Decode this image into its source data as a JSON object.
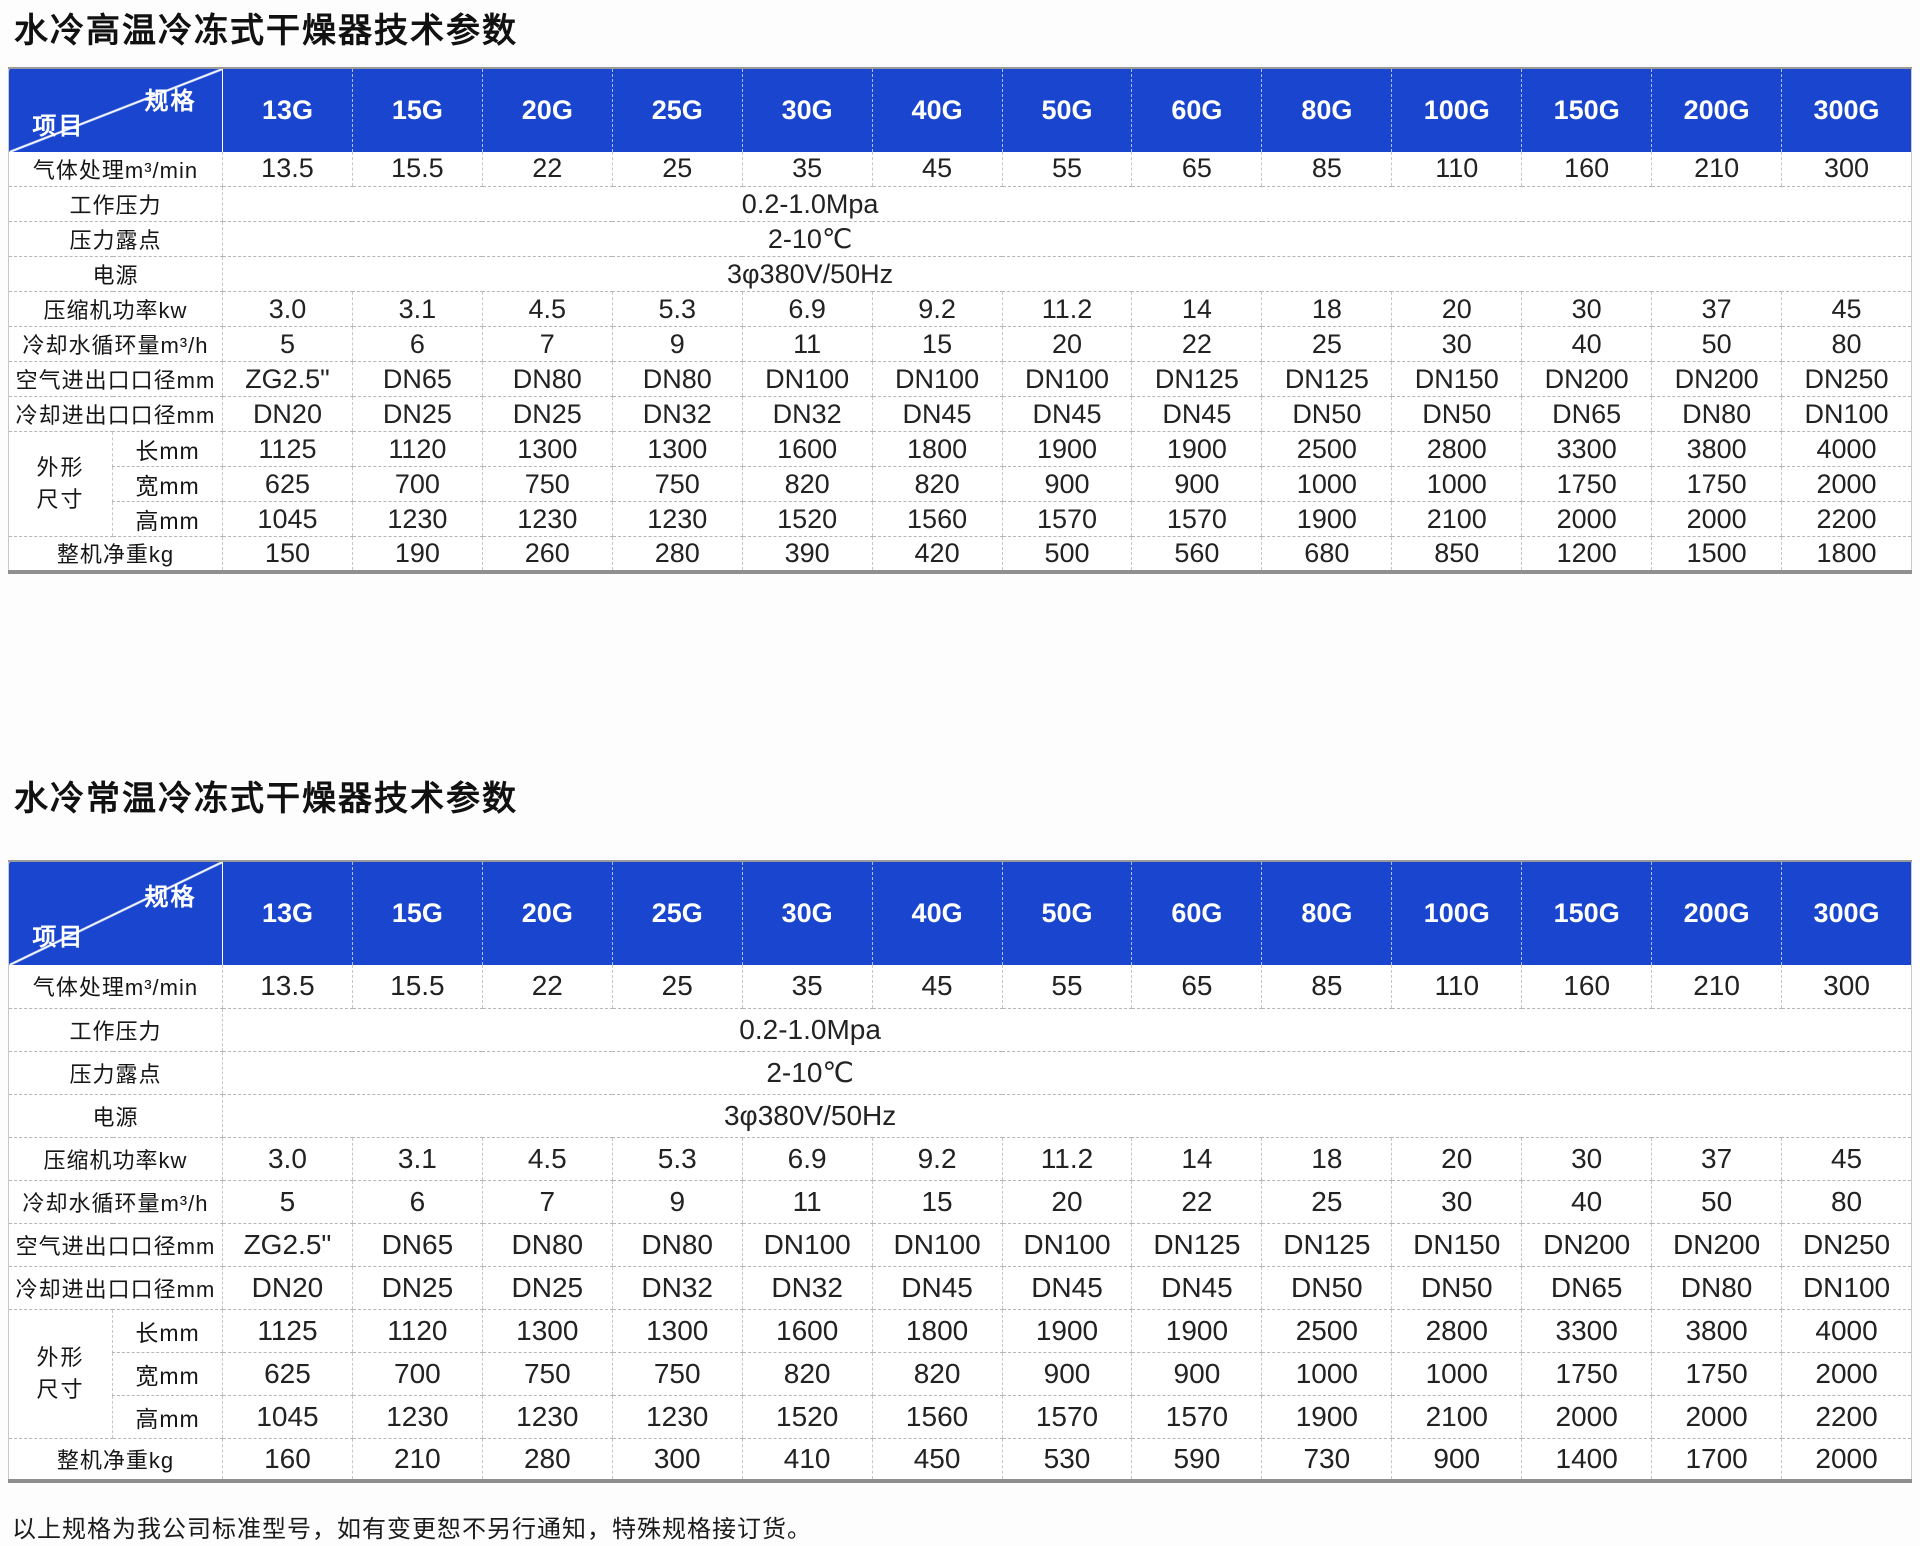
{
  "colors": {
    "header_blue": "#1a46cf"
  },
  "footer": {
    "note": "以上规格为我公司标准型号，如有变更恕不另行通知，特殊规格接订货。"
  },
  "tables": [
    {
      "title": "水冷高温冷冻式干燥器技术参数",
      "corner": {
        "spec": "规格",
        "item": "项目"
      },
      "models": [
        "13G",
        "15G",
        "20G",
        "25G",
        "30G",
        "40G",
        "50G",
        "60G",
        "80G",
        "100G",
        "150G",
        "200G",
        "300G"
      ],
      "dim_group": [
        "外形",
        "尺寸"
      ],
      "rows": [
        {
          "label": "气体处理m³/min",
          "values": [
            "13.5",
            "15.5",
            "22",
            "25",
            "35",
            "45",
            "55",
            "65",
            "85",
            "110",
            "160",
            "210",
            "300"
          ]
        },
        {
          "label": "工作压力",
          "merged": "0.2-1.0Mpa"
        },
        {
          "label": "压力露点",
          "merged": "2-10℃"
        },
        {
          "label": "电源",
          "merged": "3φ380V/50Hz"
        },
        {
          "label": "压缩机功率kw",
          "values": [
            "3.0",
            "3.1",
            "4.5",
            "5.3",
            "6.9",
            "9.2",
            "11.2",
            "14",
            "18",
            "20",
            "30",
            "37",
            "45"
          ]
        },
        {
          "label": "冷却水循环量m³/h",
          "values": [
            "5",
            "6",
            "7",
            "9",
            "11",
            "15",
            "20",
            "22",
            "25",
            "30",
            "40",
            "50",
            "80"
          ]
        },
        {
          "label": "空气进出口口径mm",
          "values": [
            "ZG2.5\"",
            "DN65",
            "DN80",
            "DN80",
            "DN100",
            "DN100",
            "DN100",
            "DN125",
            "DN125",
            "DN150",
            "DN200",
            "DN200",
            "DN250"
          ]
        },
        {
          "label": "冷却进出口口径mm",
          "values": [
            "DN20",
            "DN25",
            "DN25",
            "DN32",
            "DN32",
            "DN45",
            "DN45",
            "DN45",
            "DN50",
            "DN50",
            "DN65",
            "DN80",
            "DN100"
          ]
        },
        {
          "label": "长mm",
          "dim_start": true,
          "values": [
            "1125",
            "1120",
            "1300",
            "1300",
            "1600",
            "1800",
            "1900",
            "1900",
            "2500",
            "2800",
            "3300",
            "3800",
            "4000"
          ]
        },
        {
          "label": "宽mm",
          "dim": true,
          "values": [
            "625",
            "700",
            "750",
            "750",
            "820",
            "820",
            "900",
            "900",
            "1000",
            "1000",
            "1750",
            "1750",
            "2000"
          ]
        },
        {
          "label": "高mm",
          "dim": true,
          "values": [
            "1045",
            "1230",
            "1230",
            "1230",
            "1520",
            "1560",
            "1570",
            "1570",
            "1900",
            "2100",
            "2000",
            "2000",
            "2200"
          ]
        },
        {
          "label": "整机净重kg",
          "values": [
            "150",
            "190",
            "260",
            "280",
            "390",
            "420",
            "500",
            "560",
            "680",
            "850",
            "1200",
            "1500",
            "1800"
          ]
        }
      ]
    },
    {
      "title": "水冷常温冷冻式干燥器技术参数",
      "corner": {
        "spec": "规格",
        "item": "项目"
      },
      "models": [
        "13G",
        "15G",
        "20G",
        "25G",
        "30G",
        "40G",
        "50G",
        "60G",
        "80G",
        "100G",
        "150G",
        "200G",
        "300G"
      ],
      "dim_group": [
        "外形",
        "尺寸"
      ],
      "rows": [
        {
          "label": "气体处理m³/min",
          "values": [
            "13.5",
            "15.5",
            "22",
            "25",
            "35",
            "45",
            "55",
            "65",
            "85",
            "110",
            "160",
            "210",
            "300"
          ]
        },
        {
          "label": "工作压力",
          "merged": "0.2-1.0Mpa"
        },
        {
          "label": "压力露点",
          "merged": "2-10℃"
        },
        {
          "label": "电源",
          "merged": "3φ380V/50Hz"
        },
        {
          "label": "压缩机功率kw",
          "values": [
            "3.0",
            "3.1",
            "4.5",
            "5.3",
            "6.9",
            "9.2",
            "11.2",
            "14",
            "18",
            "20",
            "30",
            "37",
            "45"
          ]
        },
        {
          "label": "冷却水循环量m³/h",
          "values": [
            "5",
            "6",
            "7",
            "9",
            "11",
            "15",
            "20",
            "22",
            "25",
            "30",
            "40",
            "50",
            "80"
          ]
        },
        {
          "label": "空气进出口口径mm",
          "values": [
            "ZG2.5\"",
            "DN65",
            "DN80",
            "DN80",
            "DN100",
            "DN100",
            "DN100",
            "DN125",
            "DN125",
            "DN150",
            "DN200",
            "DN200",
            "DN250"
          ]
        },
        {
          "label": "冷却进出口口径mm",
          "values": [
            "DN20",
            "DN25",
            "DN25",
            "DN32",
            "DN32",
            "DN45",
            "DN45",
            "DN45",
            "DN50",
            "DN50",
            "DN65",
            "DN80",
            "DN100"
          ]
        },
        {
          "label": "长mm",
          "dim_start": true,
          "values": [
            "1125",
            "1120",
            "1300",
            "1300",
            "1600",
            "1800",
            "1900",
            "1900",
            "2500",
            "2800",
            "3300",
            "3800",
            "4000"
          ]
        },
        {
          "label": "宽mm",
          "dim": true,
          "values": [
            "625",
            "700",
            "750",
            "750",
            "820",
            "820",
            "900",
            "900",
            "1000",
            "1000",
            "1750",
            "1750",
            "2000"
          ]
        },
        {
          "label": "高mm",
          "dim": true,
          "values": [
            "1045",
            "1230",
            "1230",
            "1230",
            "1520",
            "1560",
            "1570",
            "1570",
            "1900",
            "2100",
            "2000",
            "2000",
            "2200"
          ]
        },
        {
          "label": "整机净重kg",
          "values": [
            "160",
            "210",
            "280",
            "300",
            "410",
            "450",
            "530",
            "590",
            "730",
            "900",
            "1400",
            "1700",
            "2000"
          ]
        }
      ]
    }
  ]
}
